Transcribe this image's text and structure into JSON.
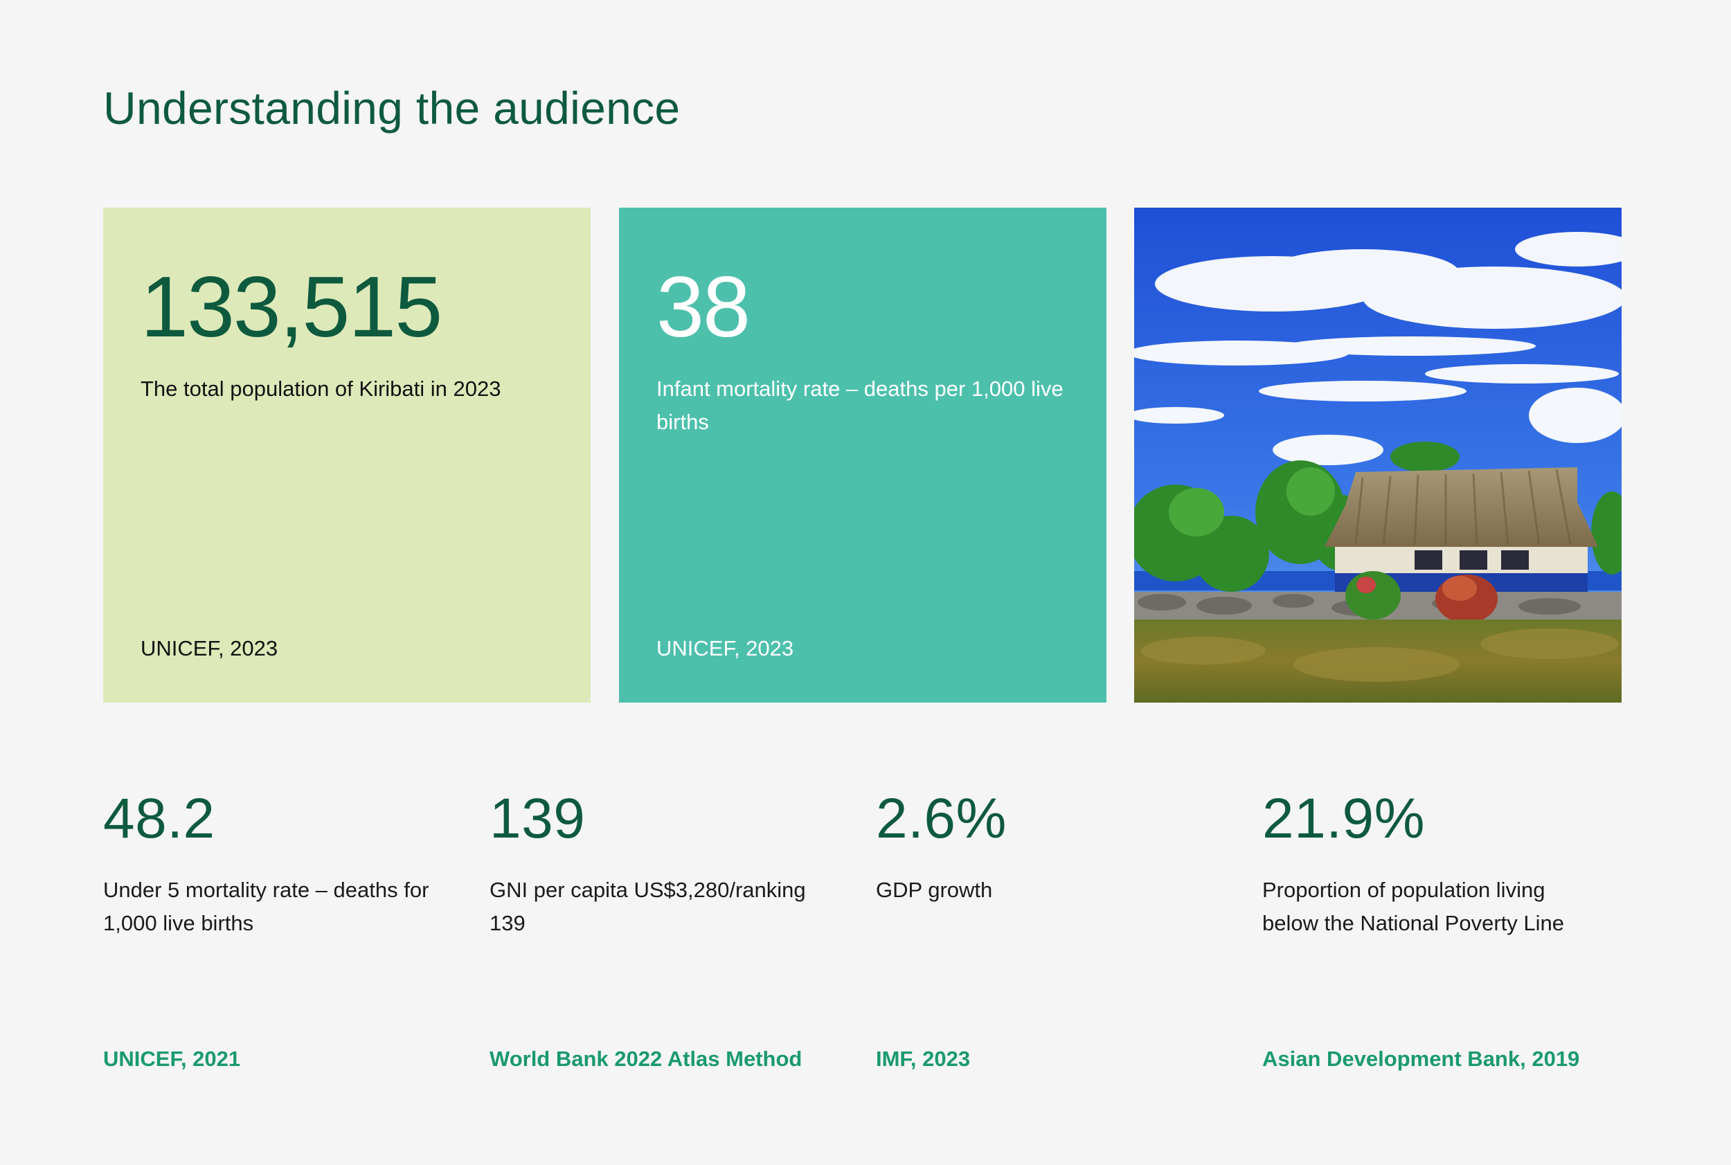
{
  "heading": "Understanding the audience",
  "cards": [
    {
      "value": "133,515",
      "description": "The total population of Kiribati in 2023",
      "source": "UNICEF, 2023",
      "bg": "#dee9b9"
    },
    {
      "value": "38",
      "description": "Infant mortality rate – deaths per 1,000 live births",
      "source": "UNICEF, 2023",
      "bg": "#4dc0ac"
    }
  ],
  "image": {
    "subject": "thatched-hut-island-photo"
  },
  "stats": [
    {
      "value": "48.2",
      "label": "Under 5 mortality rate – deaths for 1,000 live births",
      "source": "UNICEF, 2021"
    },
    {
      "value": "139",
      "label": "GNI per capita US$3,280/ranking 139",
      "source": "World Bank 2022 Atlas Method"
    },
    {
      "value": "2.6%",
      "label": "GDP growth",
      "source": "IMF, 2023"
    },
    {
      "value": "21.9%",
      "label": "Proportion of population living below the National Poverty Line",
      "source": "Asian Development Bank, 2019"
    }
  ],
  "colors": {
    "accent_dark": "#0e5a3e",
    "accent_source": "#1a9a6e",
    "background": "#f5f5f5"
  }
}
